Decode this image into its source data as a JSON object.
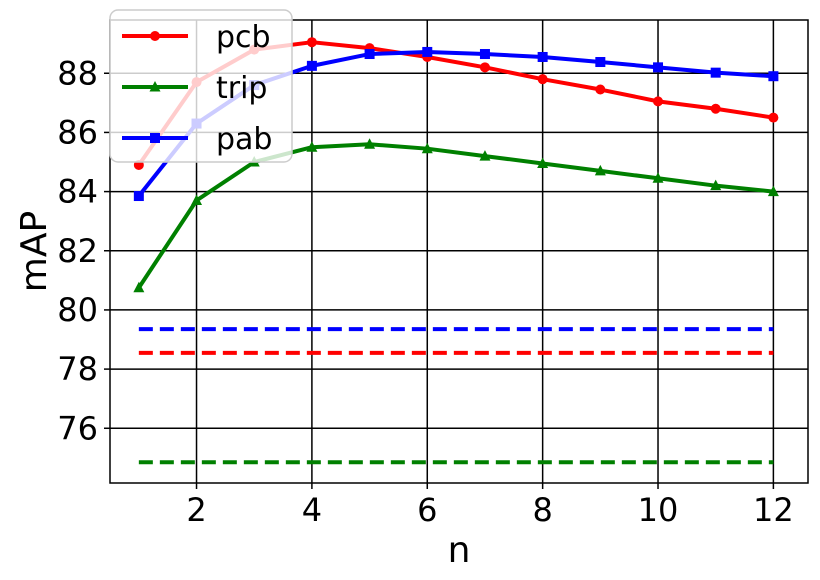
{
  "chart_data": {
    "type": "line",
    "title": "",
    "xlabel": "n",
    "ylabel": "mAP",
    "xlim": [
      0.5,
      12.6
    ],
    "ylim": [
      74.15,
      89.8
    ],
    "xticks": [
      2,
      4,
      6,
      8,
      10,
      12
    ],
    "yticks": [
      76,
      78,
      80,
      82,
      84,
      86,
      88
    ],
    "grid": true,
    "legend_position": "upper-left",
    "series": [
      {
        "name": "pcb",
        "color": "#ff0000",
        "marker": "circle",
        "linestyle": "solid",
        "x": [
          1,
          2,
          3,
          4,
          5,
          6,
          7,
          8,
          9,
          10,
          11,
          12
        ],
        "y": [
          84.9,
          87.7,
          88.8,
          89.05,
          88.85,
          88.55,
          88.2,
          87.8,
          87.45,
          87.05,
          86.8,
          86.5
        ]
      },
      {
        "name": "trip",
        "color": "#008000",
        "marker": "triangle",
        "linestyle": "solid",
        "x": [
          1,
          2,
          3,
          4,
          5,
          6,
          7,
          8,
          9,
          10,
          11,
          12
        ],
        "y": [
          80.75,
          83.7,
          85.0,
          85.5,
          85.6,
          85.45,
          85.2,
          84.95,
          84.7,
          84.45,
          84.2,
          84.0
        ]
      },
      {
        "name": "pab",
        "color": "#0000ff",
        "marker": "square",
        "linestyle": "solid",
        "x": [
          1,
          2,
          3,
          4,
          5,
          6,
          7,
          8,
          9,
          10,
          11,
          12
        ],
        "y": [
          83.85,
          86.3,
          87.6,
          88.25,
          88.65,
          88.72,
          88.65,
          88.55,
          88.38,
          88.2,
          88.02,
          87.9
        ]
      },
      {
        "color": "#0000ff",
        "linestyle": "dashed",
        "x": [
          1,
          12
        ],
        "y": [
          79.35,
          79.35
        ]
      },
      {
        "color": "#ff0000",
        "linestyle": "dashed",
        "x": [
          1,
          12
        ],
        "y": [
          78.55,
          78.55
        ]
      },
      {
        "color": "#008000",
        "linestyle": "dashed",
        "x": [
          1,
          12
        ],
        "y": [
          74.85,
          74.85
        ]
      }
    ]
  }
}
